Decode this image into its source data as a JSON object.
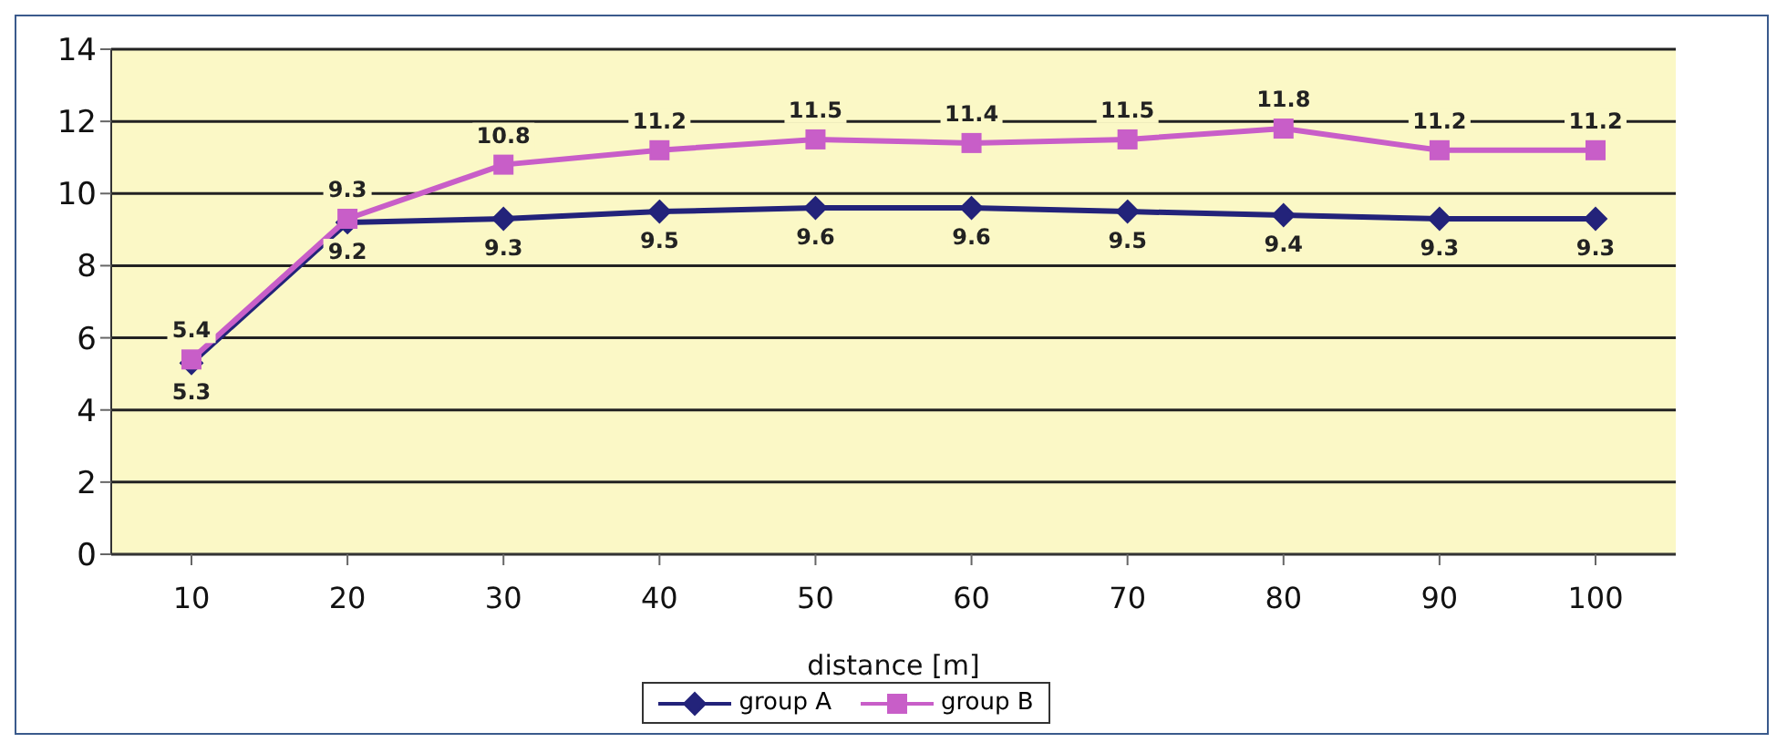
{
  "chart_data": {
    "type": "line",
    "xlabel": "distance [m]",
    "categories": [
      "10",
      "20",
      "30",
      "40",
      "50",
      "60",
      "70",
      "80",
      "90",
      "100"
    ],
    "series": [
      {
        "name": "group A",
        "color": "#23237a",
        "marker": "diamond",
        "values": [
          5.3,
          9.2,
          9.3,
          9.5,
          9.6,
          9.6,
          9.5,
          9.4,
          9.3,
          9.3
        ]
      },
      {
        "name": "group B",
        "color": "#c85ec8",
        "marker": "square",
        "values": [
          5.4,
          9.3,
          10.8,
          11.2,
          11.5,
          11.4,
          11.5,
          11.8,
          11.2,
          11.2
        ]
      }
    ],
    "ylim": [
      0,
      14
    ],
    "yticks": [
      0,
      2,
      4,
      6,
      8,
      10,
      12,
      14
    ],
    "grid": "y",
    "legend": "bottom",
    "data_labels": true
  }
}
